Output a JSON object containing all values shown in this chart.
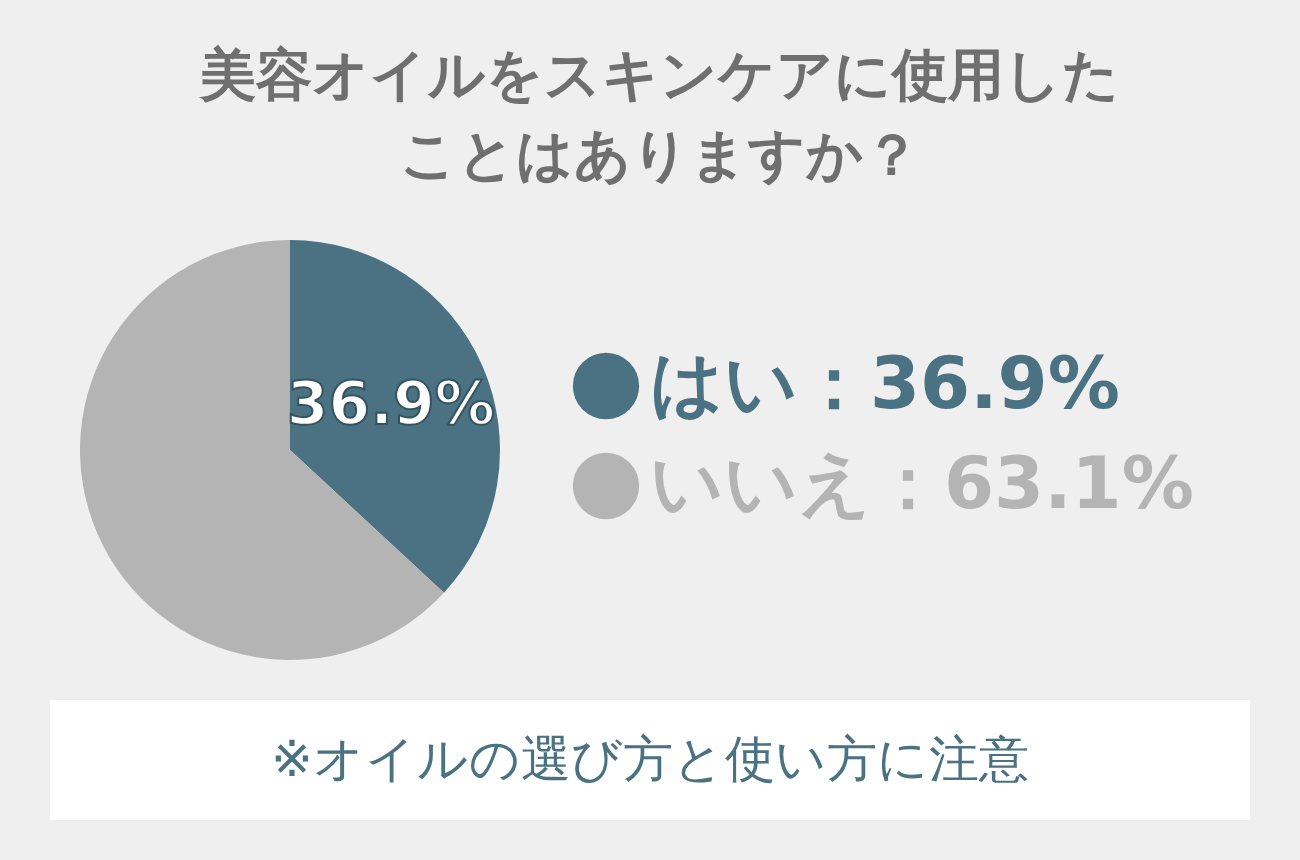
{
  "chart_data": {
    "type": "pie",
    "title": "美容オイルをスキンケアに使用したことはありますか？",
    "categories": [
      "はい：36.9%",
      "いいえ：63.1%"
    ],
    "values": [
      36.9,
      63.1
    ],
    "colors": [
      "#4a7282",
      "#b4b4b4"
    ],
    "value_labels": [
      "36.9%",
      null
    ],
    "legend": "right",
    "annotations": [
      "※オイルの選び方と使い方に注意"
    ]
  }
}
